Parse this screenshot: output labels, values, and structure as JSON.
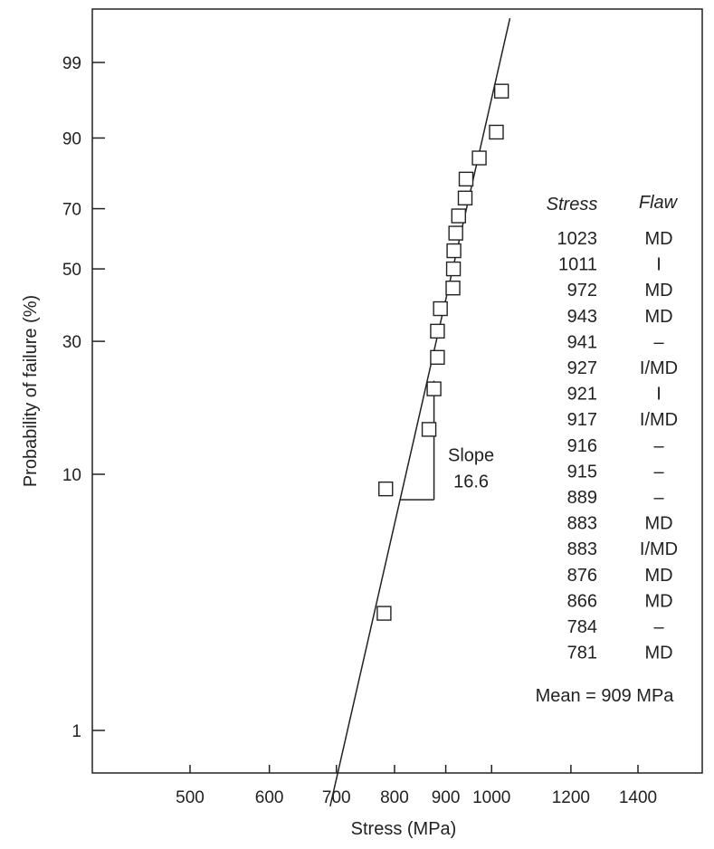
{
  "chart_data": {
    "type": "scatter",
    "title": "",
    "xlabel": "Stress (MPa)",
    "ylabel": "Probability of failure (%)",
    "x_scale": "log",
    "y_scale": "weibull",
    "xlim": [
      400,
      1700
    ],
    "ylim": [
      0.5,
      99.9
    ],
    "grid": false,
    "x_ticks": [
      {
        "value": 500,
        "label": "500"
      },
      {
        "value": 600,
        "label": "600"
      },
      {
        "value": 700,
        "label": "700"
      },
      {
        "value": 800,
        "label": "800"
      },
      {
        "value": 900,
        "label": "900"
      },
      {
        "value": 1000,
        "label": "1000"
      },
      {
        "value": 1200,
        "label": "1200"
      },
      {
        "value": 1400,
        "label": "1400"
      }
    ],
    "y_ticks": [
      {
        "value": 1,
        "label": "1"
      },
      {
        "value": 10,
        "label": "10"
      },
      {
        "value": 30,
        "label": "30"
      },
      {
        "value": 50,
        "label": "50"
      },
      {
        "value": 70,
        "label": "70"
      },
      {
        "value": 90,
        "label": "90"
      },
      {
        "value": 99,
        "label": "99"
      }
    ],
    "points": [
      {
        "x": 781,
        "y": 2.9
      },
      {
        "x": 784,
        "y": 8.8
      },
      {
        "x": 866,
        "y": 14.7
      },
      {
        "x": 876,
        "y": 20.6
      },
      {
        "x": 883,
        "y": 26.5
      },
      {
        "x": 883,
        "y": 32.4
      },
      {
        "x": 889,
        "y": 38.2
      },
      {
        "x": 915,
        "y": 44.1
      },
      {
        "x": 916,
        "y": 50.0
      },
      {
        "x": 917,
        "y": 55.9
      },
      {
        "x": 921,
        "y": 61.8
      },
      {
        "x": 927,
        "y": 67.6
      },
      {
        "x": 941,
        "y": 73.5
      },
      {
        "x": 943,
        "y": 79.4
      },
      {
        "x": 972,
        "y": 85.3
      },
      {
        "x": 1011,
        "y": 91.2
      },
      {
        "x": 1023,
        "y": 97.1
      }
    ],
    "fit_line": {
      "slope": 16.6,
      "x1": 690,
      "y1": 0.5,
      "x2": 1043,
      "y2": 99.9
    },
    "slope_annotation": {
      "line1": "Slope",
      "line2": "16.6",
      "x_low": 810,
      "x_high": 876,
      "y_low": 8.0,
      "y_high": 22.0
    },
    "table": {
      "headers": [
        "Stress",
        "Flaw"
      ],
      "rows": [
        {
          "stress": "1023",
          "flaw": "MD"
        },
        {
          "stress": "1011",
          "flaw": "I"
        },
        {
          "stress": "972",
          "flaw": "MD"
        },
        {
          "stress": "943",
          "flaw": "MD"
        },
        {
          "stress": "941",
          "flaw": "–"
        },
        {
          "stress": "927",
          "flaw": "I/MD"
        },
        {
          "stress": "921",
          "flaw": "I"
        },
        {
          "stress": "917",
          "flaw": "I/MD"
        },
        {
          "stress": "916",
          "flaw": "–"
        },
        {
          "stress": "915",
          "flaw": "–"
        },
        {
          "stress": "889",
          "flaw": "–"
        },
        {
          "stress": "883",
          "flaw": "MD"
        },
        {
          "stress": "883",
          "flaw": "I/MD"
        },
        {
          "stress": "876",
          "flaw": "MD"
        },
        {
          "stress": "866",
          "flaw": "MD"
        },
        {
          "stress": "784",
          "flaw": "–"
        },
        {
          "stress": "781",
          "flaw": "MD"
        }
      ]
    },
    "mean_label": "Mean = 909 MPa"
  }
}
